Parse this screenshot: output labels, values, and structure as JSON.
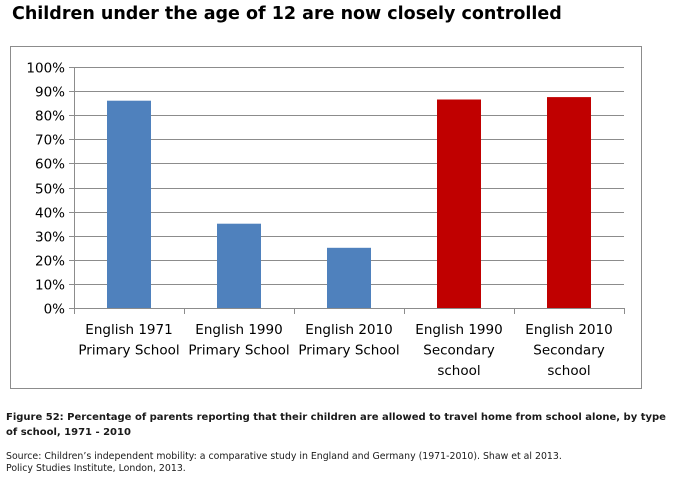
{
  "page": {
    "title": "Children under the age of 12 are now closely controlled",
    "caption": "Figure 52: Percentage of parents reporting that their children are allowed to travel home from school alone, by type of school, 1971 - 2010",
    "source_line1": "Source: Children’s independent mobility: a comparative study in England and Germany (1971-2010).  Shaw et al 2013.",
    "source_line2": "Policy Studies Institute, London, 2013."
  },
  "chart_data": {
    "type": "bar",
    "categories": [
      [
        "English 1971",
        "Primary School"
      ],
      [
        "English 1990",
        "Primary School"
      ],
      [
        "English 2010",
        "Primary School"
      ],
      [
        "English 1990",
        "Secondary",
        "school"
      ],
      [
        "English 2010",
        "Secondary",
        "school"
      ]
    ],
    "values": [
      86,
      35,
      25,
      86.5,
      87.5
    ],
    "bar_colors": [
      "#4f81bd",
      "#4f81bd",
      "#4f81bd",
      "#c00000",
      "#c00000"
    ],
    "ylim": [
      0,
      100
    ],
    "yticks": [
      0,
      10,
      20,
      30,
      40,
      50,
      60,
      70,
      80,
      90,
      100
    ],
    "ytick_labels": [
      "0%",
      "10%",
      "20%",
      "30%",
      "40%",
      "50%",
      "60%",
      "70%",
      "80%",
      "90%",
      "100%"
    ],
    "grid": true,
    "legend": false,
    "colors": {
      "gridline": "#8c8c8c",
      "axis": "#8c8c8c"
    }
  }
}
